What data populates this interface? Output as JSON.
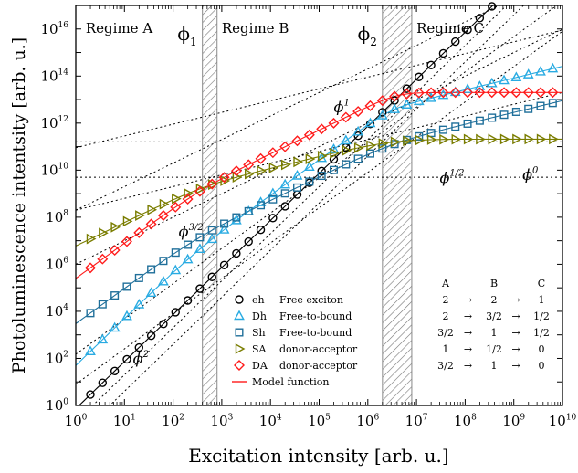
{
  "chart_data": {
    "type": "scatter",
    "xlabel": "Excitation intensity [arb. u.]",
    "ylabel": "Photoluminescence intentsity [arb. u.]",
    "xscale": "log",
    "yscale": "log",
    "xlim": [
      1,
      10000000000.0
    ],
    "ylim": [
      1,
      1e+17
    ],
    "x_ticks": [
      {
        "value": 1,
        "label": "10",
        "exp": "0"
      },
      {
        "value": 10,
        "label": "10",
        "exp": "1"
      },
      {
        "value": 100,
        "label": "10",
        "exp": "2"
      },
      {
        "value": 1000,
        "label": "10",
        "exp": "3"
      },
      {
        "value": 10000,
        "label": "10",
        "exp": "4"
      },
      {
        "value": 100000,
        "label": "10",
        "exp": "5"
      },
      {
        "value": 1000000,
        "label": "10",
        "exp": "6"
      },
      {
        "value": 10000000,
        "label": "10",
        "exp": "7"
      },
      {
        "value": 100000000,
        "label": "10",
        "exp": "8"
      },
      {
        "value": 1000000000,
        "label": "10",
        "exp": "9"
      },
      {
        "value": 10000000000,
        "label": "10",
        "exp": "10"
      }
    ],
    "y_ticks": [
      {
        "value": 1,
        "label": "10",
        "exp": "0"
      },
      {
        "value": 100,
        "label": "10",
        "exp": "2"
      },
      {
        "value": 10000,
        "label": "10",
        "exp": "4"
      },
      {
        "value": 1000000,
        "label": "10",
        "exp": "6"
      },
      {
        "value": 100000000,
        "label": "10",
        "exp": "8"
      },
      {
        "value": 10000000000,
        "label": "10",
        "exp": "10"
      },
      {
        "value": 1000000000000,
        "label": "10",
        "exp": "12"
      },
      {
        "value": 100000000000000,
        "label": "10",
        "exp": "14"
      },
      {
        "value": 10000000000000000,
        "label": "10",
        "exp": "16"
      }
    ],
    "regimes": [
      {
        "label": "Regime A",
        "x": 1.6
      },
      {
        "label": "Regime B",
        "x": 1000
      },
      {
        "label": "Regime C",
        "x": 10000000
      }
    ],
    "transitions": [
      {
        "label": "ϕ",
        "sub": "1",
        "x_range": [
          400,
          800
        ]
      },
      {
        "label": "ϕ",
        "sub": "2",
        "x_range": [
          2000000,
          8000000
        ]
      }
    ],
    "slope_labels": [
      {
        "label": "ϕ",
        "sup": "2",
        "x": 15,
        "y": 60
      },
      {
        "label": "ϕ",
        "sup": "3/2",
        "x": 130,
        "y": 15000000.0
      },
      {
        "label": "ϕ",
        "sup": "1",
        "x": 200000,
        "y": 3000000000000.0
      },
      {
        "label": "ϕ",
        "sup": "1/2",
        "x": 30000000,
        "y": 3000000000.0
      },
      {
        "label": "ϕ",
        "sup": "0",
        "x": 1500000000,
        "y": 4000000000.0
      }
    ],
    "guides": [
      {
        "slope": 2,
        "y0": 0.2
      },
      {
        "slope": 2,
        "y0": 0.04
      },
      {
        "slope": 1.5,
        "y0": 150
      },
      {
        "slope": 1.5,
        "y0": 8
      },
      {
        "slope": 1,
        "y0": 200000000.0
      },
      {
        "slope": 1,
        "y0": 1000000.0
      },
      {
        "slope": 0.5,
        "y0": 90000000000.0
      },
      {
        "slope": 0.5,
        "y0": 200000000.0
      },
      {
        "slope": 0,
        "y0": 160000000000.0
      },
      {
        "slope": 0,
        "y0": 5000000000.0
      }
    ],
    "series": [
      {
        "name": "eh",
        "description": "Free exciton",
        "marker": "circle",
        "color": "#000000",
        "phi1": 10000000000.0,
        "phi2": 10000000000.0,
        "A": 1,
        "s1": 2,
        "s2": 2,
        "s3": 1
      },
      {
        "name": "Dh",
        "description": "Free-to-bound",
        "marker": "triangle",
        "color": "#29abe2",
        "phi1": 300,
        "phi2": 3000000.0,
        "A": 50,
        "s1": 2,
        "s2": 1.5,
        "s3": 0.5
      },
      {
        "name": "Sh",
        "description": "Free-to-bound",
        "marker": "square",
        "color": "#1f6f9a",
        "phi1": 300,
        "phi2": 3000000.0,
        "A": 3000,
        "s1": 1.5,
        "s2": 1,
        "s3": 0.5
      },
      {
        "name": "SA",
        "description": "donor-acceptor",
        "marker": "triangle-right",
        "color": "#7a7d00",
        "phi1": 400,
        "phi2": 3000000.0,
        "A": 6000000.0,
        "s1": 1,
        "s2": 0.5,
        "s3": 0
      },
      {
        "name": "DA",
        "description": "donor-acceptor",
        "marker": "diamond",
        "color": "#ff1a1a",
        "phi1": 400,
        "phi2": 4000000.0,
        "A": 250000.0,
        "s1": 1.5,
        "s2": 1,
        "s3": 0
      }
    ],
    "model_line": {
      "label": "Model function",
      "color": "#ff1a1a"
    },
    "exponent_table": {
      "headers": [
        "A",
        "B",
        "C"
      ],
      "rows": [
        [
          "2",
          "2",
          "1"
        ],
        [
          "2",
          "3/2",
          "1/2"
        ],
        [
          "3/2",
          "1",
          "1/2"
        ],
        [
          "1",
          "1/2",
          "0"
        ],
        [
          "3/2",
          "1",
          "0"
        ]
      ],
      "arrow": "→"
    }
  }
}
